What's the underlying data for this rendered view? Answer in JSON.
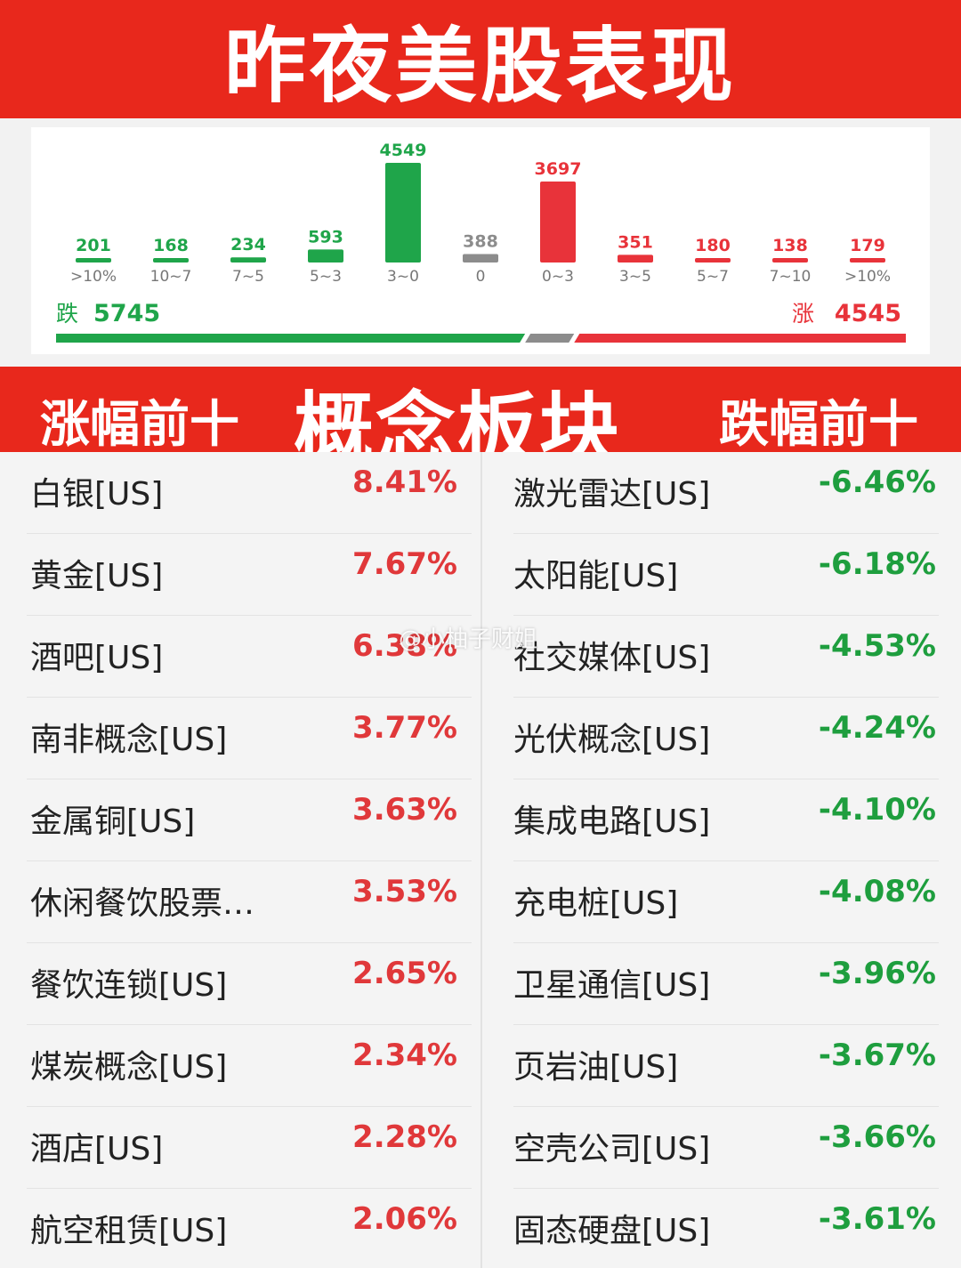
{
  "header": {
    "title": "昨夜美股表现"
  },
  "distribution": {
    "down_label": "跌",
    "down_total": "5745",
    "up_label": "涨",
    "up_total": "4545",
    "colors": {
      "down": "#1fa54a",
      "up": "#e8333a",
      "flat": "#8c8c8c"
    },
    "down_bar_fraction": 0.552,
    "up_bar_fraction": 0.384
  },
  "chart_data": {
    "type": "bar",
    "categories": [
      ">10%",
      "10~7",
      "7~5",
      "5~3",
      "3~0",
      "0",
      "0~3",
      "3~5",
      "5~7",
      "7~10",
      ">10%"
    ],
    "values": [
      201,
      168,
      234,
      593,
      4549,
      388,
      3697,
      351,
      180,
      138,
      179
    ],
    "value_labels": [
      "201",
      "168",
      "234",
      "593",
      "4549",
      "388",
      "3697",
      "351",
      "180",
      "138",
      "179"
    ],
    "bar_colors": [
      "#1fa54a",
      "#1fa54a",
      "#1fa54a",
      "#1fa54a",
      "#1fa54a",
      "#8c8c8c",
      "#e8333a",
      "#e8333a",
      "#e8333a",
      "#e8333a",
      "#e8333a"
    ],
    "ylim": [
      0,
      4549
    ]
  },
  "concept": {
    "left_title": "涨幅前十",
    "center_title": "概念板块",
    "right_title": "跌幅前十"
  },
  "gainers": [
    {
      "name": "白银[US]",
      "pct": "8.41%"
    },
    {
      "name": "黄金[US]",
      "pct": "7.67%"
    },
    {
      "name": "酒吧[US]",
      "pct": "6.38%"
    },
    {
      "name": "南非概念[US]",
      "pct": "3.77%"
    },
    {
      "name": "金属铜[US]",
      "pct": "3.63%"
    },
    {
      "name": "休闲餐饮股票…",
      "pct": "3.53%"
    },
    {
      "name": "餐饮连锁[US]",
      "pct": "2.65%"
    },
    {
      "name": "煤炭概念[US]",
      "pct": "2.34%"
    },
    {
      "name": "酒店[US]",
      "pct": "2.28%"
    },
    {
      "name": "航空租赁[US]",
      "pct": "2.06%"
    }
  ],
  "losers": [
    {
      "name": "激光雷达[US]",
      "pct": "-6.46%"
    },
    {
      "name": "太阳能[US]",
      "pct": "-6.18%"
    },
    {
      "name": "社交媒体[US]",
      "pct": "-4.53%"
    },
    {
      "name": "光伏概念[US]",
      "pct": "-4.24%"
    },
    {
      "name": "集成电路[US]",
      "pct": "-4.10%"
    },
    {
      "name": "充电桩[US]",
      "pct": "-4.08%"
    },
    {
      "name": "卫星通信[US]",
      "pct": "-3.96%"
    },
    {
      "name": "页岩油[US]",
      "pct": "-3.67%"
    },
    {
      "name": "空壳公司[US]",
      "pct": "-3.66%"
    },
    {
      "name": "固态硬盘[US]",
      "pct": "-3.61%"
    }
  ],
  "watermark": "@小柚子财姐"
}
